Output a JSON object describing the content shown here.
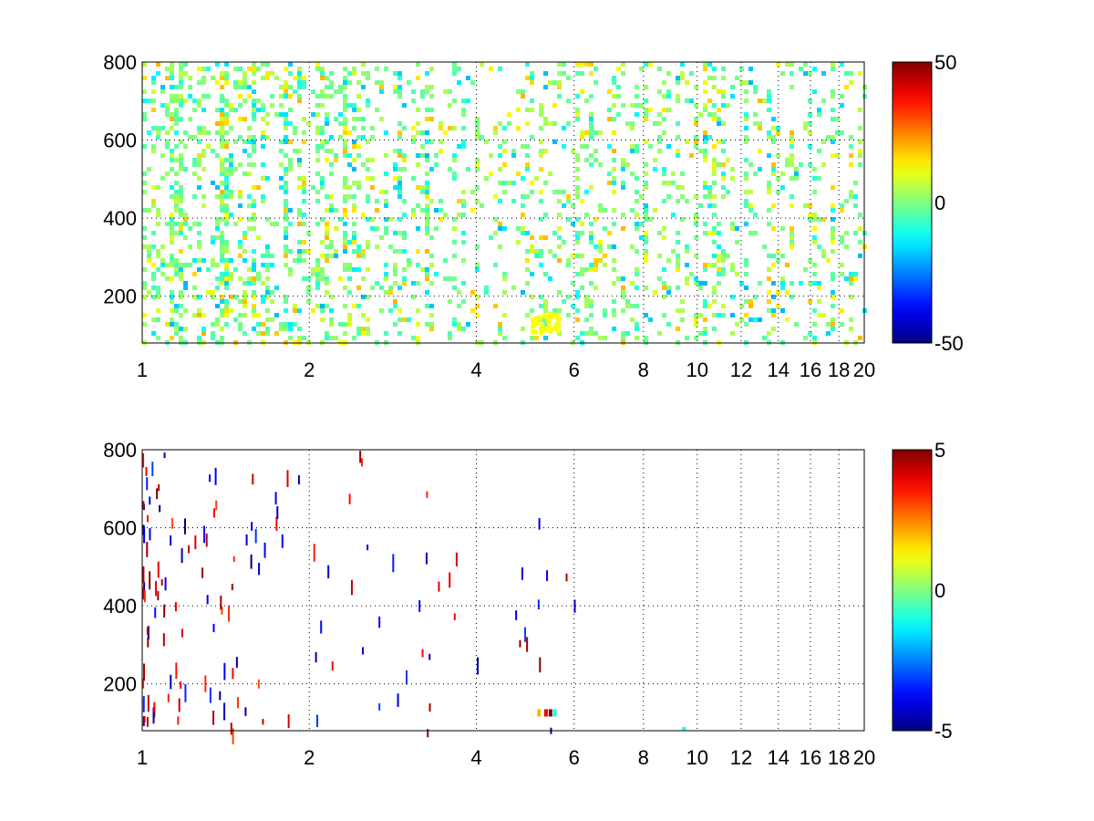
{
  "chart_data": [
    {
      "type": "heatmap",
      "title": "",
      "xlabel": "",
      "ylabel": "",
      "x_scale": "log",
      "xlim": [
        1,
        20
      ],
      "ylim": [
        80,
        800
      ],
      "x_ticks": [
        1,
        2,
        4,
        6,
        8,
        10,
        12,
        14,
        16,
        18,
        20
      ],
      "x_tick_labels": [
        "1",
        "2",
        "4",
        "6",
        "8",
        "10",
        "12",
        "14",
        "16",
        "18",
        "20"
      ],
      "y_ticks": [
        200,
        400,
        600,
        800
      ],
      "y_tick_labels": [
        "200",
        "400",
        "600",
        "800"
      ],
      "grid": true,
      "grid_style": "dotted",
      "colormap": "jet",
      "clim": [
        -50,
        50
      ],
      "colorbar_ticks": [
        -50,
        0,
        50
      ],
      "colorbar_tick_labels": [
        "-50",
        "0",
        "50"
      ],
      "note_values": "sparse scattered cells, mostly near 0 (green/cyan/yellow); dense at low x (1-6), sparser toward 20; cluster of values ~+10 near x=5.3, y=130",
      "density": 0.55
    },
    {
      "type": "heatmap",
      "title": "",
      "xlabel": "",
      "ylabel": "",
      "x_scale": "log",
      "xlim": [
        1,
        20
      ],
      "ylim": [
        80,
        800
      ],
      "x_ticks": [
        1,
        2,
        4,
        6,
        8,
        10,
        12,
        14,
        16,
        18,
        20
      ],
      "x_tick_labels": [
        "1",
        "2",
        "4",
        "6",
        "8",
        "10",
        "12",
        "14",
        "16",
        "18",
        "20"
      ],
      "y_ticks": [
        200,
        400,
        600,
        800
      ],
      "y_tick_labels": [
        "200",
        "400",
        "600",
        "800"
      ],
      "grid": true,
      "grid_style": "dotted",
      "colormap": "jet",
      "clim": [
        -5,
        5
      ],
      "colorbar_ticks": [
        -5,
        0,
        5
      ],
      "colorbar_tick_labels": [
        "-5",
        "0",
        "5"
      ],
      "note_values": "very sparse isolated cells with extreme values (±5), concentrated at x<6",
      "density": 0.03
    }
  ]
}
